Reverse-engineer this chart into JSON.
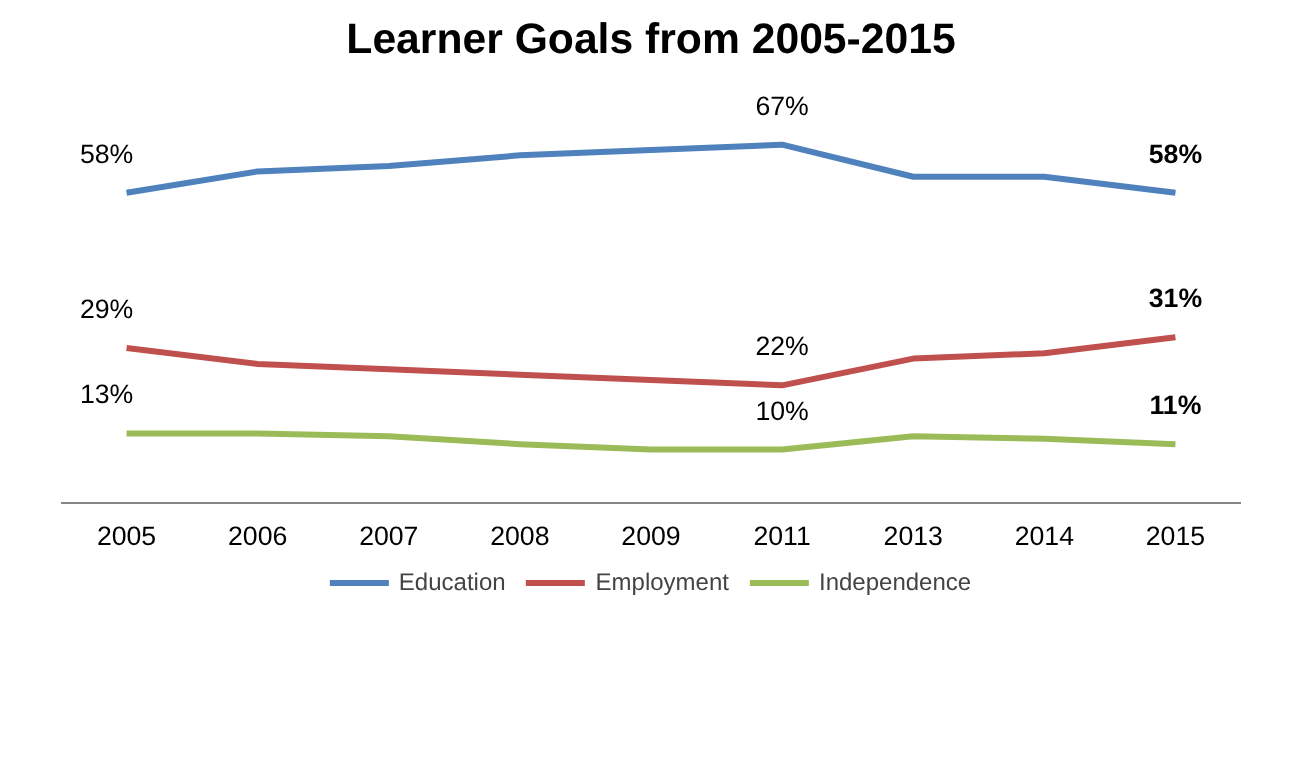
{
  "chart_data": {
    "type": "line",
    "title": "Learner Goals from 2005-2015",
    "categories": [
      "2005",
      "2006",
      "2007",
      "2008",
      "2009",
      "2011",
      "2013",
      "2014",
      "2015"
    ],
    "series": [
      {
        "name": "Education",
        "color": "#4f81bd",
        "values": [
          58,
          62,
          63,
          65,
          66,
          67,
          61,
          61,
          58
        ],
        "value_labels": [
          "58%",
          null,
          null,
          null,
          null,
          "67%",
          null,
          null,
          "58%"
        ]
      },
      {
        "name": "Employment",
        "color": "#c0504d",
        "values": [
          29,
          26,
          25,
          24,
          23,
          22,
          27,
          28,
          31
        ],
        "value_labels": [
          "29%",
          null,
          null,
          null,
          null,
          "22%",
          null,
          null,
          "31%"
        ]
      },
      {
        "name": "Independence",
        "color": "#9bbb59",
        "values": [
          13,
          13,
          12.5,
          11,
          10,
          10,
          12.5,
          12,
          11
        ],
        "value_labels": [
          "13%",
          null,
          null,
          null,
          null,
          "10%",
          null,
          null,
          "11%"
        ]
      }
    ],
    "legend": "bottom",
    "grid": false,
    "marker": "none",
    "line_style": "solid"
  }
}
